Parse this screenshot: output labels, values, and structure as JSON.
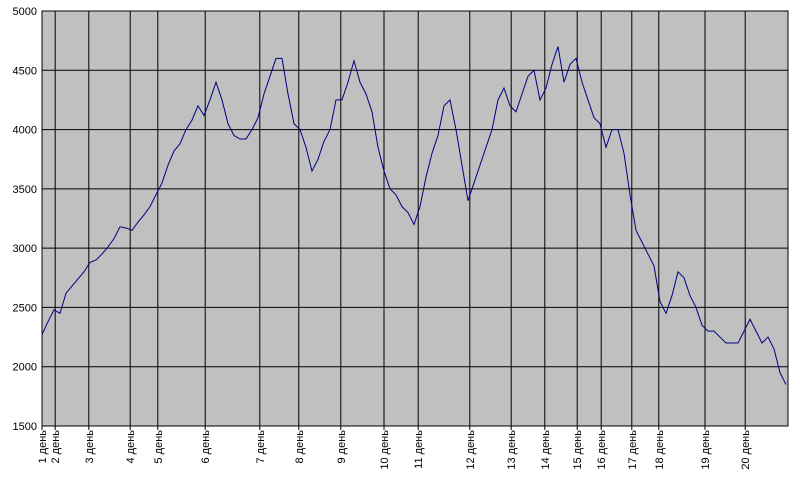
{
  "chart_data": {
    "type": "line",
    "x": [
      0,
      1,
      2,
      3,
      4,
      5,
      6,
      7,
      8,
      9,
      10,
      11,
      12,
      13,
      14,
      15,
      16,
      17,
      18,
      19,
      20,
      21,
      22,
      23,
      24,
      25,
      26,
      27,
      28,
      29,
      30,
      31,
      32,
      33,
      34,
      35,
      36,
      37,
      38,
      39,
      40,
      41,
      42,
      43,
      44,
      45,
      46,
      47,
      48,
      49,
      50,
      51,
      52,
      53,
      54,
      55,
      56,
      57,
      58,
      59,
      60,
      61,
      62,
      63,
      64,
      65,
      66,
      67,
      68,
      69,
      70,
      71,
      72,
      73,
      74,
      75,
      76,
      77,
      78,
      79,
      80,
      81,
      82,
      83,
      84,
      85,
      86,
      87,
      88,
      89,
      90,
      91,
      92,
      93,
      94,
      95,
      96,
      97,
      98,
      99,
      100,
      101,
      102,
      103,
      104,
      105,
      106,
      107,
      108,
      109,
      110,
      111,
      112,
      113,
      114,
      115,
      116,
      117,
      118,
      119,
      120,
      121,
      122,
      123,
      124
    ],
    "series": [
      {
        "color": "#000080",
        "values": [
          2270,
          2380,
          2480,
          2450,
          2620,
          2680,
          2740,
          2800,
          2880,
          2900,
          2950,
          3010,
          3080,
          3180,
          3170,
          3150,
          3220,
          3280,
          3350,
          3450,
          3550,
          3700,
          3820,
          3880,
          4000,
          4080,
          4200,
          4120,
          4250,
          4400,
          4250,
          4050,
          3950,
          3920,
          3920,
          4000,
          4100,
          4300,
          4450,
          4600,
          4600,
          4300,
          4050,
          4000,
          3850,
          3650,
          3750,
          3900,
          4000,
          4250,
          4250,
          4400,
          4580,
          4400,
          4300,
          4150,
          3850,
          3650,
          3500,
          3450,
          3350,
          3300,
          3200,
          3350,
          3600,
          3800,
          3950,
          4200,
          4250,
          4000,
          3700,
          3400,
          3550,
          3700,
          3850,
          4000,
          4250,
          4350,
          4200,
          4150,
          4300,
          4450,
          4500,
          4250,
          4350,
          4550,
          4700,
          4400,
          4550,
          4600,
          4400,
          4250,
          4100,
          4050,
          3850,
          4000,
          4000,
          3800,
          3450,
          3150,
          3050,
          2950,
          2850,
          2550,
          2450,
          2600,
          2800,
          2750,
          2600,
          2500,
          2350,
          2300,
          2300,
          2250,
          2200,
          2200,
          2200,
          2300,
          2400,
          2300,
          2200,
          2250,
          2150,
          1950,
          1850
        ]
      }
    ],
    "xlim": [
      0,
      124
    ],
    "xticks": [
      {
        "value": 0,
        "label": "1 день"
      },
      {
        "value": 2.2,
        "label": "2 день"
      },
      {
        "value": 7.8,
        "label": "3 день"
      },
      {
        "value": 14.7,
        "label": "4 день"
      },
      {
        "value": 19.3,
        "label": "5 день"
      },
      {
        "value": 27.2,
        "label": "6 день"
      },
      {
        "value": 36.3,
        "label": "7 день"
      },
      {
        "value": 42.8,
        "label": "8 день"
      },
      {
        "value": 49.8,
        "label": "9 день"
      },
      {
        "value": 57,
        "label": "10 день"
      },
      {
        "value": 62.7,
        "label": "11 день"
      },
      {
        "value": 71.3,
        "label": "12 день"
      },
      {
        "value": 78.2,
        "label": "13 день"
      },
      {
        "value": 83.8,
        "label": "14 день"
      },
      {
        "value": 89.2,
        "label": "15 день"
      },
      {
        "value": 93.2,
        "label": "16 день"
      },
      {
        "value": 98.3,
        "label": "17 день"
      },
      {
        "value": 102.8,
        "label": "18 день"
      },
      {
        "value": 110.5,
        "label": "19 день"
      },
      {
        "value": 117.2,
        "label": "20 день"
      }
    ],
    "ylim": [
      1500,
      5000
    ],
    "yticks": [
      1500,
      2000,
      2500,
      3000,
      3500,
      4000,
      4500,
      5000
    ],
    "grid": true
  }
}
